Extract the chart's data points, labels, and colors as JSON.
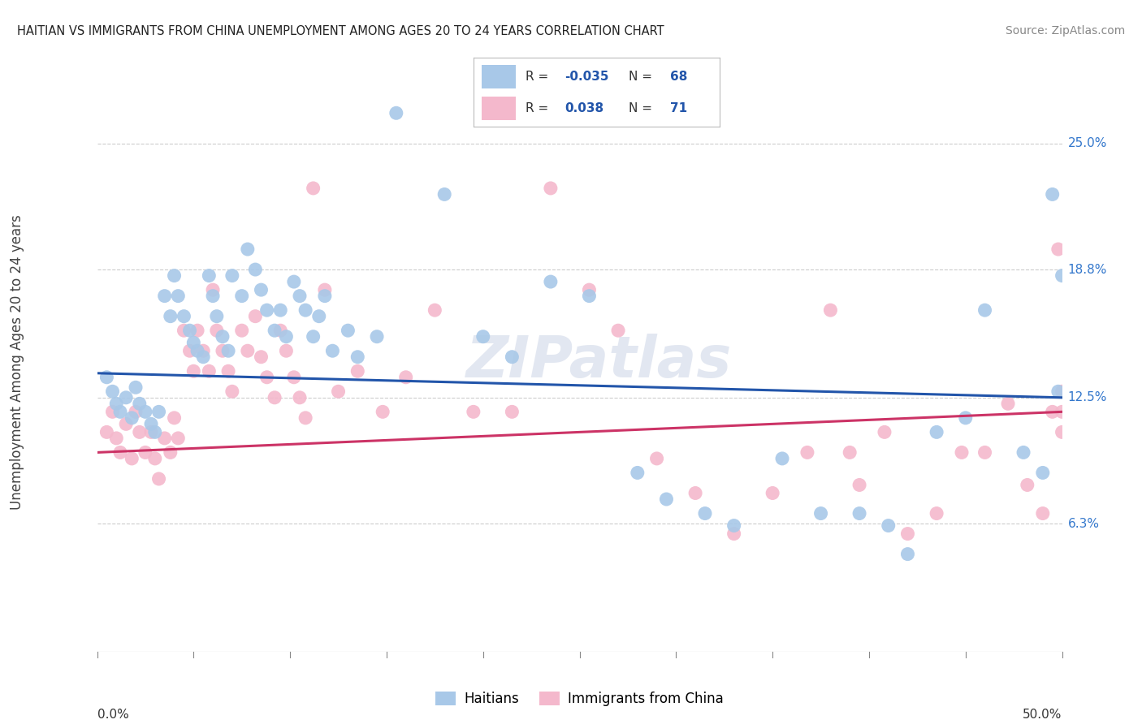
{
  "title": "HAITIAN VS IMMIGRANTS FROM CHINA UNEMPLOYMENT AMONG AGES 20 TO 24 YEARS CORRELATION CHART",
  "source": "Source: ZipAtlas.com",
  "ylabel": "Unemployment Among Ages 20 to 24 years",
  "ytick_labels": [
    "25.0%",
    "18.8%",
    "12.5%",
    "6.3%"
  ],
  "ytick_values": [
    0.25,
    0.188,
    0.125,
    0.063
  ],
  "xmin": 0.0,
  "xmax": 0.5,
  "ymin": 0.0,
  "ymax": 0.285,
  "blue_color": "#a8c8e8",
  "pink_color": "#f4b8cc",
  "blue_line_color": "#2255aa",
  "pink_line_color": "#cc3366",
  "watermark": "ZIPatlas",
  "blue_trend_start": 0.137,
  "blue_trend_end": 0.125,
  "pink_trend_start": 0.098,
  "pink_trend_end": 0.118,
  "blue_points_x": [
    0.005,
    0.008,
    0.01,
    0.012,
    0.015,
    0.018,
    0.02,
    0.022,
    0.025,
    0.028,
    0.03,
    0.032,
    0.035,
    0.038,
    0.04,
    0.042,
    0.045,
    0.048,
    0.05,
    0.052,
    0.055,
    0.058,
    0.06,
    0.062,
    0.065,
    0.068,
    0.07,
    0.075,
    0.078,
    0.082,
    0.085,
    0.088,
    0.092,
    0.095,
    0.098,
    0.102,
    0.105,
    0.108,
    0.112,
    0.115,
    0.118,
    0.122,
    0.13,
    0.135,
    0.145,
    0.155,
    0.18,
    0.2,
    0.215,
    0.235,
    0.255,
    0.28,
    0.295,
    0.315,
    0.33,
    0.355,
    0.375,
    0.395,
    0.41,
    0.42,
    0.435,
    0.45,
    0.46,
    0.48,
    0.49,
    0.495,
    0.498,
    0.5
  ],
  "blue_points_y": [
    0.135,
    0.128,
    0.122,
    0.118,
    0.125,
    0.115,
    0.13,
    0.122,
    0.118,
    0.112,
    0.108,
    0.118,
    0.175,
    0.165,
    0.185,
    0.175,
    0.165,
    0.158,
    0.152,
    0.148,
    0.145,
    0.185,
    0.175,
    0.165,
    0.155,
    0.148,
    0.185,
    0.175,
    0.198,
    0.188,
    0.178,
    0.168,
    0.158,
    0.168,
    0.155,
    0.182,
    0.175,
    0.168,
    0.155,
    0.165,
    0.175,
    0.148,
    0.158,
    0.145,
    0.155,
    0.265,
    0.225,
    0.155,
    0.145,
    0.182,
    0.175,
    0.088,
    0.075,
    0.068,
    0.062,
    0.095,
    0.068,
    0.068,
    0.062,
    0.048,
    0.108,
    0.115,
    0.168,
    0.098,
    0.088,
    0.225,
    0.128,
    0.185
  ],
  "pink_points_x": [
    0.005,
    0.008,
    0.01,
    0.012,
    0.015,
    0.018,
    0.02,
    0.022,
    0.025,
    0.028,
    0.03,
    0.032,
    0.035,
    0.038,
    0.04,
    0.042,
    0.045,
    0.048,
    0.05,
    0.052,
    0.055,
    0.058,
    0.06,
    0.062,
    0.065,
    0.068,
    0.07,
    0.075,
    0.078,
    0.082,
    0.085,
    0.088,
    0.092,
    0.095,
    0.098,
    0.102,
    0.105,
    0.108,
    0.112,
    0.118,
    0.125,
    0.135,
    0.148,
    0.16,
    0.175,
    0.195,
    0.215,
    0.235,
    0.255,
    0.27,
    0.29,
    0.31,
    0.33,
    0.35,
    0.368,
    0.38,
    0.39,
    0.395,
    0.408,
    0.42,
    0.435,
    0.448,
    0.46,
    0.472,
    0.482,
    0.49,
    0.495,
    0.498,
    0.5,
    0.5,
    0.5
  ],
  "pink_points_y": [
    0.108,
    0.118,
    0.105,
    0.098,
    0.112,
    0.095,
    0.118,
    0.108,
    0.098,
    0.108,
    0.095,
    0.085,
    0.105,
    0.098,
    0.115,
    0.105,
    0.158,
    0.148,
    0.138,
    0.158,
    0.148,
    0.138,
    0.178,
    0.158,
    0.148,
    0.138,
    0.128,
    0.158,
    0.148,
    0.165,
    0.145,
    0.135,
    0.125,
    0.158,
    0.148,
    0.135,
    0.125,
    0.115,
    0.228,
    0.178,
    0.128,
    0.138,
    0.118,
    0.135,
    0.168,
    0.118,
    0.118,
    0.228,
    0.178,
    0.158,
    0.095,
    0.078,
    0.058,
    0.078,
    0.098,
    0.168,
    0.098,
    0.082,
    0.108,
    0.058,
    0.068,
    0.098,
    0.098,
    0.122,
    0.082,
    0.068,
    0.118,
    0.198,
    0.128,
    0.118,
    0.108
  ]
}
